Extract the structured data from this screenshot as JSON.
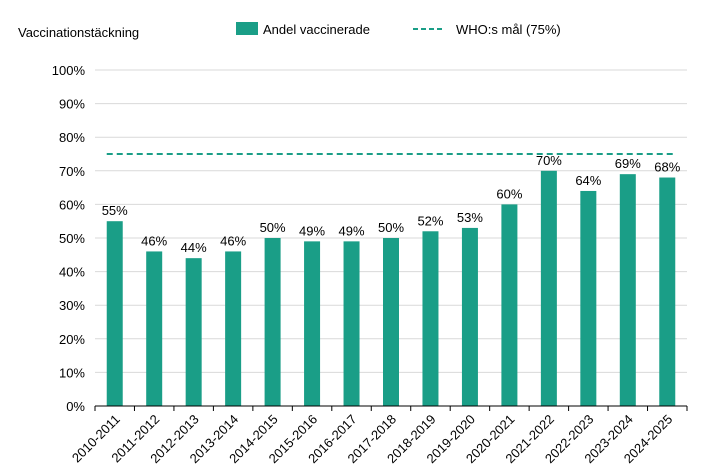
{
  "chart_data": {
    "type": "bar",
    "ylabel": "Vaccinationstäckning",
    "categories": [
      "2010-2011",
      "2011-2012",
      "2012-2013",
      "2013-2014",
      "2014-2015",
      "2015-2016",
      "2016-2017",
      "2017-2018",
      "2018-2019",
      "2019-2020",
      "2020-2021",
      "2021-2022",
      "2022-2023",
      "2023-2024",
      "2024-2025"
    ],
    "series": [
      {
        "name": "Andel vaccinerade",
        "values": [
          55,
          46,
          44,
          46,
          50,
          49,
          49,
          50,
          52,
          53,
          60,
          70,
          64,
          69,
          68
        ],
        "value_labels": [
          "55%",
          "46%",
          "44%",
          "46%",
          "50%",
          "49%",
          "49%",
          "50%",
          "52%",
          "53%",
          "60%",
          "70%",
          "64%",
          "69%",
          "68%"
        ],
        "color": "#1a9e87"
      }
    ],
    "target_line": {
      "name": "WHO:s mål (75%)",
      "value": 75,
      "color": "#1a9e87",
      "style": "dashed"
    },
    "ylim": [
      0,
      100
    ],
    "yticks": [
      "0%",
      "10%",
      "20%",
      "30%",
      "40%",
      "50%",
      "60%",
      "70%",
      "80%",
      "90%",
      "100%"
    ],
    "grid": true,
    "legend_position": "top"
  }
}
